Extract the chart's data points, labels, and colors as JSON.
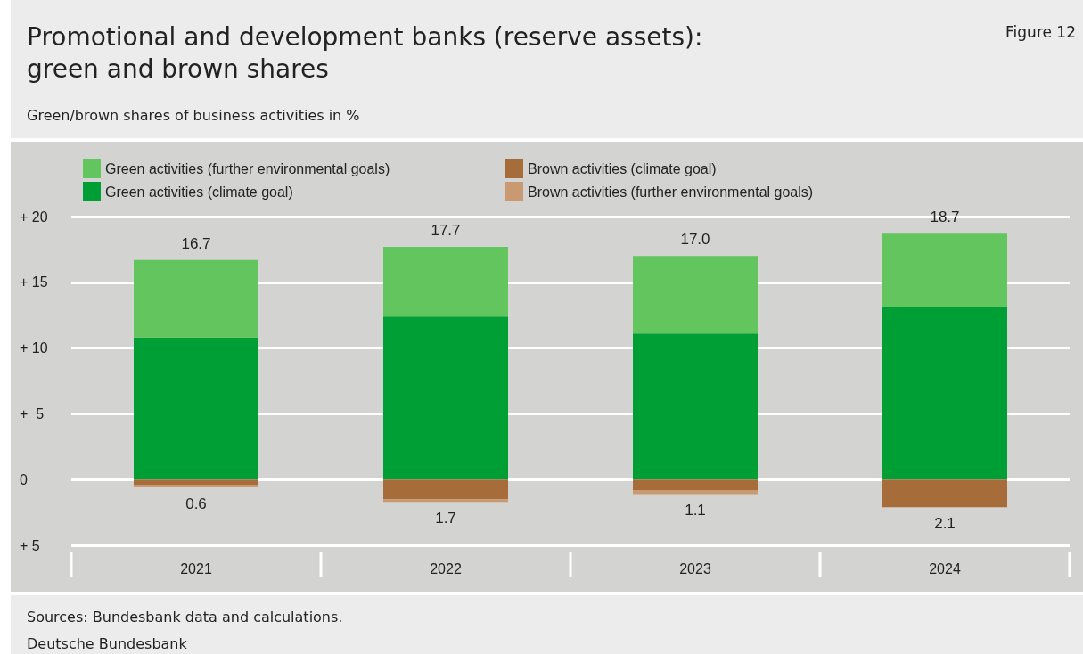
{
  "chart_data": {
    "type": "bar",
    "title": "Promotional and development banks (reserve assets):\ngreen and brown shares",
    "subtitle": "Green/brown shares of business activities in %",
    "categories": [
      "2021",
      "2022",
      "2023",
      "2024"
    ],
    "stacked": true,
    "series": [
      {
        "name": "Green activities (climate goal)",
        "color": "#009f35",
        "values": [
          10.8,
          12.4,
          11.1,
          13.1
        ]
      },
      {
        "name": "Green activities (further environmental goals)",
        "color": "#62c55e",
        "values": [
          5.9,
          5.3,
          5.9,
          5.6
        ]
      },
      {
        "name": "Brown activities (climate goal)",
        "color": "#a66d3a",
        "values": [
          -0.4,
          -1.5,
          -0.8,
          -2.1
        ]
      },
      {
        "name": "Brown activities (further environmental goals)",
        "color": "#c99a72",
        "values": [
          -0.2,
          -0.2,
          -0.3,
          0
        ]
      }
    ],
    "ylim": [
      -5,
      20
    ],
    "yticks": [
      {
        "value": -5,
        "label": "+ 5"
      },
      0,
      {
        "value": 5,
        "label": "+  5"
      },
      {
        "value": 10,
        "label": "+ 10"
      },
      {
        "value": 15,
        "label": "+ 15"
      },
      {
        "value": 20,
        "label": "+ 20"
      }
    ],
    "grid": "y",
    "legend": "top left",
    "annotations": [
      "Figure 12",
      {
        "text": "16.7",
        "x": "2021",
        "y": 16.7
      },
      {
        "text": "17.7",
        "x": "2022",
        "y": 17.7
      },
      {
        "text": "17.0",
        "x": "2023",
        "y": 17.0
      },
      {
        "text": "18.7",
        "x": "2024",
        "y": 18.7
      },
      {
        "text": "0.6",
        "x": "2021",
        "y": -0.6
      },
      {
        "text": "1.7",
        "x": "2022",
        "y": -1.7
      },
      {
        "text": "1.1",
        "x": "2023",
        "y": -1.1
      },
      {
        "text": "2.1",
        "x": "2024",
        "y": -2.1
      },
      "Sources: Bundesbank data and calculations.",
      "Deutsche Bundesbank"
    ]
  }
}
